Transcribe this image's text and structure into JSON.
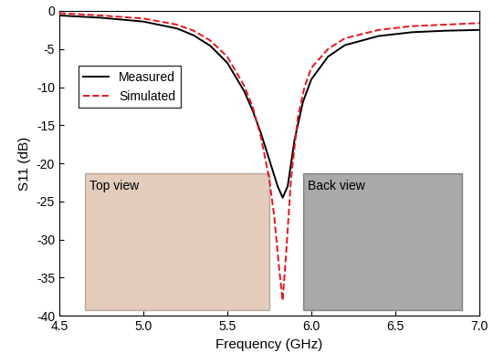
{
  "chart_data": {
    "type": "line",
    "x_label": "Frequency (GHz)",
    "y_label": "S11 (dB)",
    "xlim": [
      4.5,
      7.0
    ],
    "xticks": [
      4.5,
      5.0,
      5.5,
      6.0,
      6.5,
      7.0
    ],
    "ylim": [
      -40,
      0
    ],
    "yticks": [
      0,
      -5,
      -10,
      -15,
      -20,
      -25,
      -30,
      -35,
      -40
    ],
    "legend": "upper left",
    "annotations": [
      "Top view",
      "Back view"
    ],
    "series": [
      {
        "name": "Measured",
        "color": "#000000",
        "line_style": "solid",
        "x": [
          4.5,
          4.75,
          5.0,
          5.2,
          5.3,
          5.4,
          5.5,
          5.6,
          5.65,
          5.7,
          5.75,
          5.8,
          5.83,
          5.86,
          5.9,
          5.95,
          6.0,
          6.1,
          6.2,
          6.4,
          6.6,
          6.8,
          7.0
        ],
        "values": [
          -0.6,
          -0.9,
          -1.4,
          -2.3,
          -3.2,
          -4.6,
          -6.8,
          -10.5,
          -13,
          -16,
          -19.5,
          -23,
          -24.5,
          -23,
          -17,
          -12,
          -9,
          -6,
          -4.5,
          -3.3,
          -2.8,
          -2.6,
          -2.5
        ]
      },
      {
        "name": "Simulated",
        "color": "#e8141c",
        "line_style": "dashed",
        "x": [
          4.5,
          4.75,
          5.0,
          5.2,
          5.3,
          5.4,
          5.5,
          5.6,
          5.65,
          5.7,
          5.75,
          5.78,
          5.81,
          5.83,
          5.85,
          5.88,
          5.92,
          5.96,
          6.0,
          6.1,
          6.2,
          6.4,
          6.6,
          6.8,
          7.0
        ],
        "values": [
          -0.3,
          -0.6,
          -1.0,
          -1.8,
          -2.6,
          -3.9,
          -6,
          -9.8,
          -12.5,
          -16.5,
          -22,
          -27,
          -34,
          -38,
          -32,
          -22,
          -14,
          -10,
          -7.5,
          -5,
          -3.6,
          -2.5,
          -2.0,
          -1.8,
          -1.6
        ]
      }
    ]
  }
}
